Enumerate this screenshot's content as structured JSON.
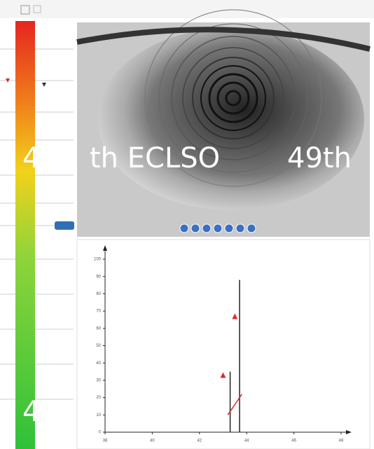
{
  "watermark": {
    "parts": [
      "4",
      "th ECLSO",
      "49th"
    ],
    "bottom": "4"
  },
  "chart_data": {
    "type": "scatter",
    "xlim": [
      38,
      48
    ],
    "xticks": [
      38,
      40,
      42,
      44,
      46,
      48
    ],
    "ylim": [
      0,
      100
    ],
    "yticks": [
      0,
      10,
      20,
      30,
      40,
      50,
      60,
      70,
      80,
      90,
      100
    ],
    "series": [
      {
        "kind": "marker",
        "color": "#d32f2f",
        "x": [
          43.0,
          43.5
        ],
        "values": [
          33,
          67
        ]
      },
      {
        "kind": "stem",
        "color": "#222222",
        "x": [
          43.3,
          43.7
        ],
        "values": [
          35,
          88
        ]
      },
      {
        "kind": "line",
        "color": "#d32f2f",
        "x": [
          43.2,
          43.8
        ],
        "values": [
          10,
          22
        ]
      }
    ]
  }
}
